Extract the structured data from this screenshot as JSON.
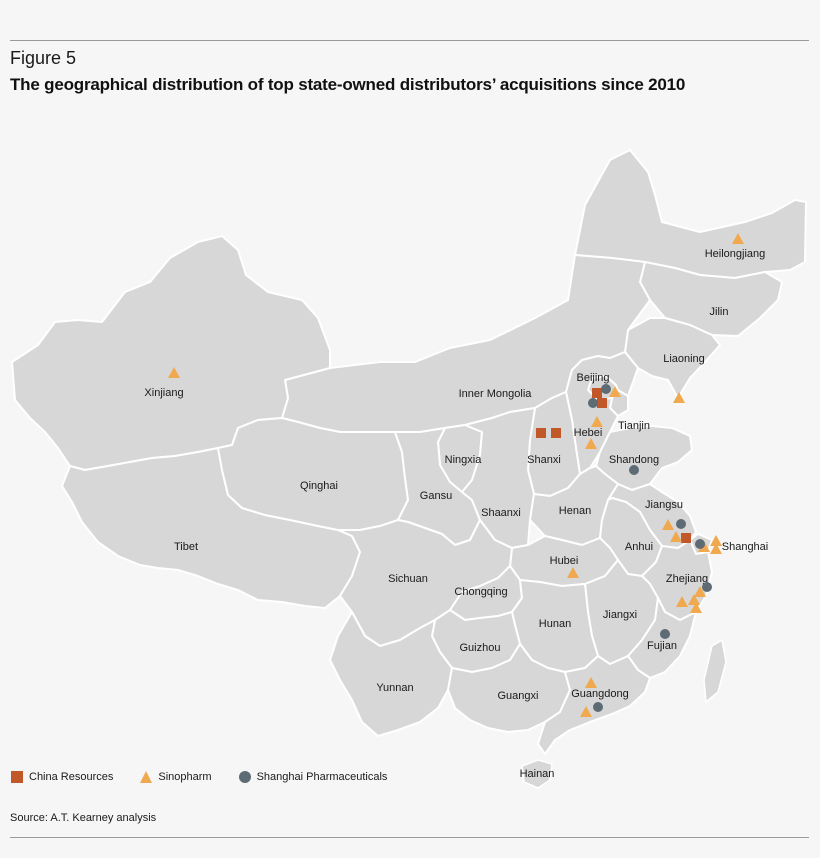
{
  "figure_label": "Figure 5",
  "title": "The geographical distribution of top state-owned distributors’ acquisitions since 2010",
  "source": "Source: A.T. Kearney analysis",
  "colors": {
    "china_resources": "#c0582a",
    "sinopharm": "#f0a94e",
    "shanghai_pharma": "#5d6b74",
    "land": "#d7d7d7",
    "border": "#ffffff",
    "background": "#f6f6f6"
  },
  "legend": [
    {
      "key": "china_resources",
      "label": "China Resources",
      "shape": "square"
    },
    {
      "key": "sinopharm",
      "label": "Sinopharm",
      "shape": "triangle"
    },
    {
      "key": "shanghai_pharma",
      "label": "Shanghai Pharmaceuticals",
      "shape": "circle"
    }
  ],
  "provinces": [
    "Heilongjiang",
    "Jilin",
    "Liaoning",
    "Inner Mongolia",
    "Beijing",
    "Tianjin",
    "Hebei",
    "Shanxi",
    "Shandong",
    "Xinjiang",
    "Qinghai",
    "Tibet",
    "Ningxia",
    "Gansu",
    "Shaanxi",
    "Henan",
    "Jiangsu",
    "Shanghai",
    "Anhui",
    "Hubei",
    "Sichuan",
    "Chongqing",
    "Zhejiang",
    "Hunan",
    "Jiangxi",
    "Fujian",
    "Guizhou",
    "Yunnan",
    "Guangxi",
    "Guangdong",
    "Hainan"
  ]
}
